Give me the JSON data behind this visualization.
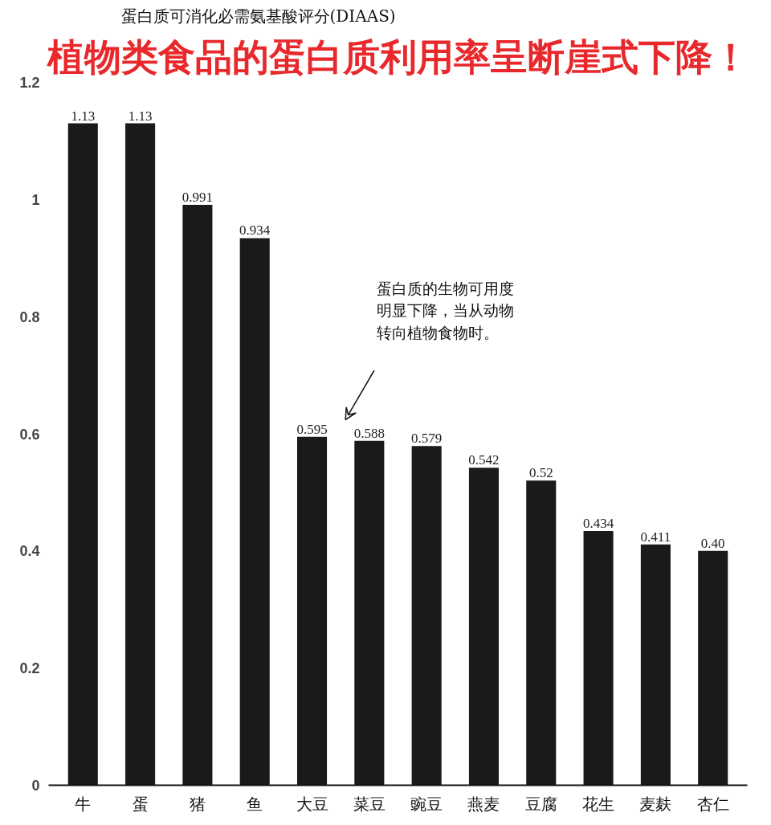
{
  "chart_data": {
    "type": "bar",
    "title": "蛋白质可消化必需氨基酸评分(DIAAS)",
    "subtitle": "植物类食品的蛋白质利用率呈断崖式下降！",
    "categories": [
      "牛",
      "蛋",
      "猪",
      "鱼",
      "大豆",
      "菜豆",
      "豌豆",
      "燕麦",
      "豆腐",
      "花生",
      "麦麸",
      "杏仁"
    ],
    "values": [
      1.13,
      1.13,
      0.991,
      0.934,
      0.595,
      0.588,
      0.579,
      0.542,
      0.52,
      0.434,
      0.411,
      0.4
    ],
    "value_labels": [
      "1.13",
      "1.13",
      "0.991",
      "0.934",
      "0.595",
      "0.588",
      "0.579",
      "0.542",
      "0.52",
      "0.434",
      "0.411",
      "0.40"
    ],
    "color": "#1a1a1a",
    "ylim": [
      0,
      1.2
    ],
    "yticks": [
      0,
      0.2,
      0.4,
      0.6,
      0.8,
      1,
      1.2
    ],
    "grid": false,
    "annotations": [
      "蛋白质的生物可用度明显下降，当从动物转向植物食物时。"
    ]
  }
}
